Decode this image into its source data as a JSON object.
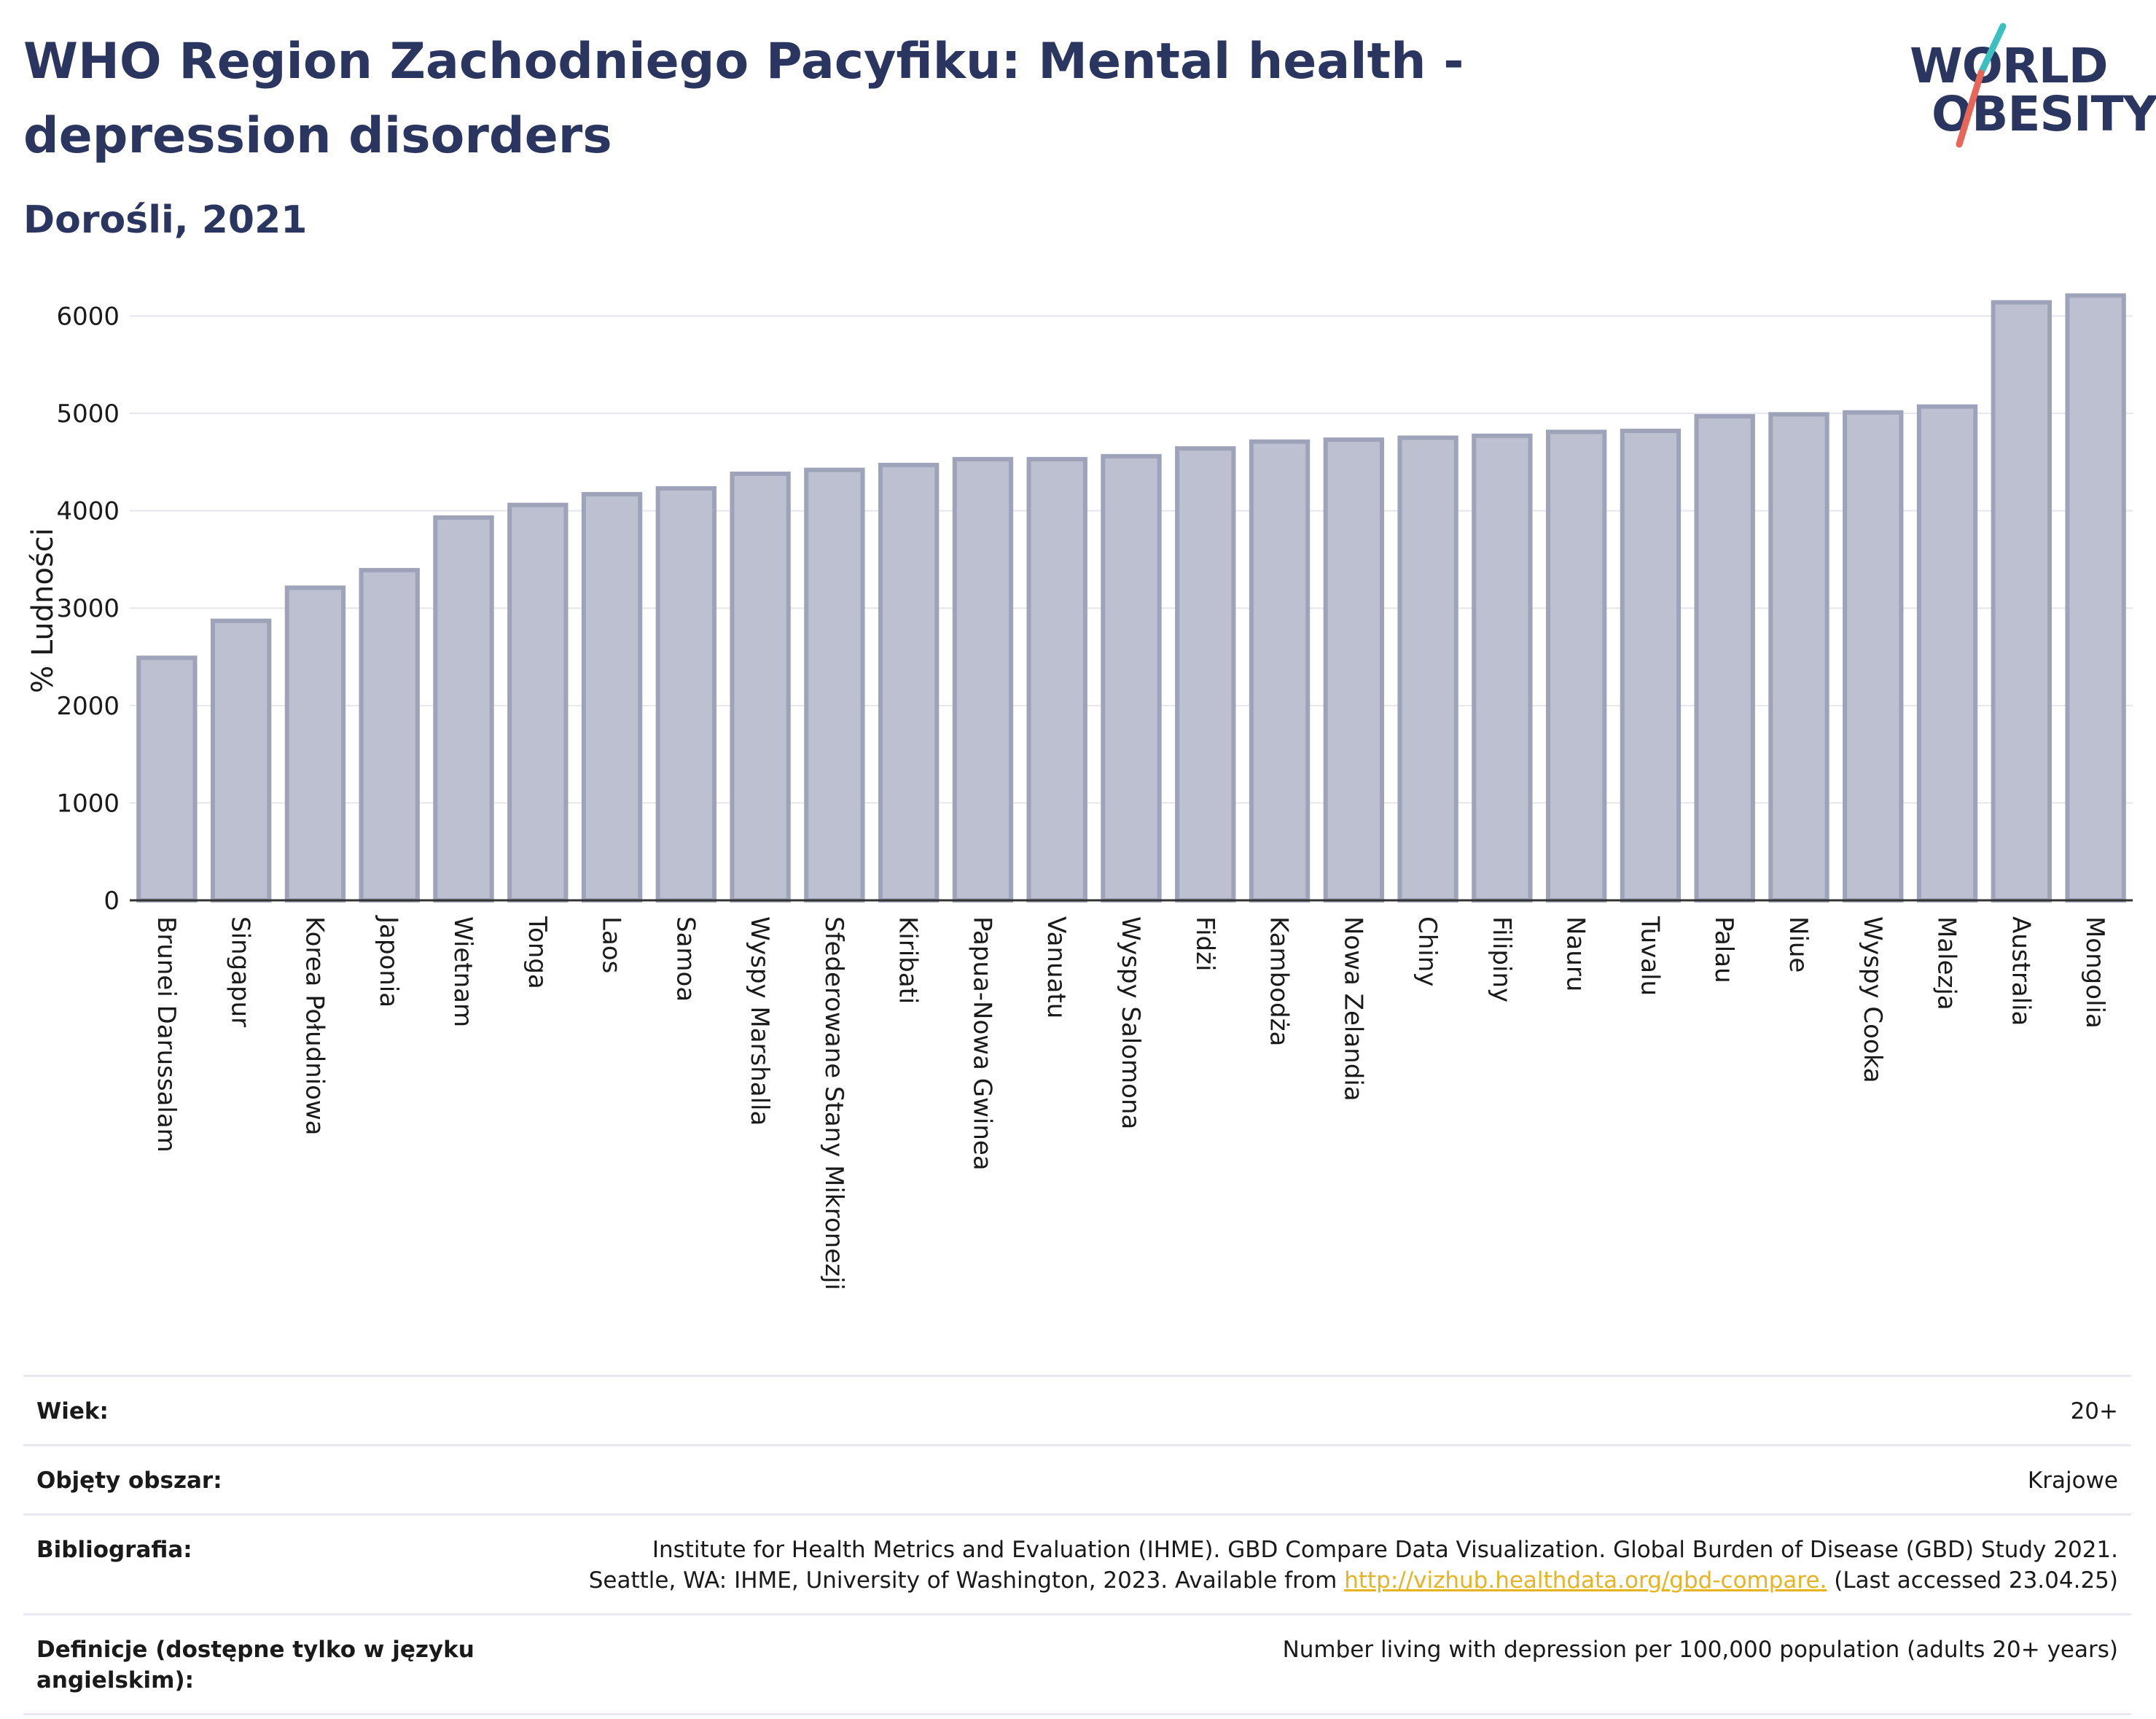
{
  "header": {
    "title": "WHO Region Zachodniego Pacyfiku: Mental health - depression disorders",
    "subtitle": "Dorośli, 2021"
  },
  "logo": {
    "line1": "WORLD",
    "line2": "OBESITY"
  },
  "colors": {
    "bar_fill": "#bcc0d0",
    "bar_stroke": "#9ea3ba",
    "accent_teal": "#3bbfc0",
    "accent_red": "#e8655a",
    "text": "#2b3660"
  },
  "chart_data": {
    "type": "bar",
    "ylabel": "% Ludności",
    "ylim": [
      0,
      6400
    ],
    "yticks": [
      0,
      1000,
      2000,
      3000,
      4000,
      5000,
      6000
    ],
    "grid": true,
    "categories": [
      "Brunei Darussalam",
      "Singapur",
      "Korea Południowa",
      "Japonia",
      "Wietnam",
      "Tonga",
      "Laos",
      "Samoa",
      "Wyspy Marshalla",
      "Sfederowane Stany Mikronezji",
      "Kiribati",
      "Papua-Nowa Gwinea",
      "Vanuatu",
      "Wyspy Salomona",
      "Fidżi",
      "Kambodża",
      "Nowa Zelandia",
      "Chiny",
      "Filipiny",
      "Nauru",
      "Tuvalu",
      "Palau",
      "Niue",
      "Wyspy Cooka",
      "Malezja",
      "Australia",
      "Mongolia"
    ],
    "values": [
      2490,
      2870,
      3210,
      3390,
      3930,
      4060,
      4170,
      4230,
      4380,
      4420,
      4470,
      4530,
      4530,
      4560,
      4640,
      4710,
      4730,
      4750,
      4770,
      4810,
      4820,
      4970,
      4990,
      5010,
      5070,
      6140,
      6210
    ]
  },
  "meta": {
    "age_label": "Wiek:",
    "age_value": "20+",
    "coverage_label": "Objęty obszar:",
    "coverage_value": "Krajowe",
    "bibliography_label": "Bibliografia:",
    "bibliography_line1": "Institute for Health Metrics and Evaluation (IHME). GBD Compare Data Visualization. Global Burden of Disease (GBD) Study 2021.",
    "bibliography_line2_pre": "Seattle, WA: IHME, University of Washington, 2023. Available from",
    "bibliography_link": "http://vizhub.healthdata.org/gbd-compare.",
    "bibliography_line2_post": "(Last accessed 23.04.25)",
    "definition_label": "Definicje (dostępne tylko w języku angielskim):",
    "definition_value": "Number living with depression per 100,000 population (adults 20+ years)"
  }
}
